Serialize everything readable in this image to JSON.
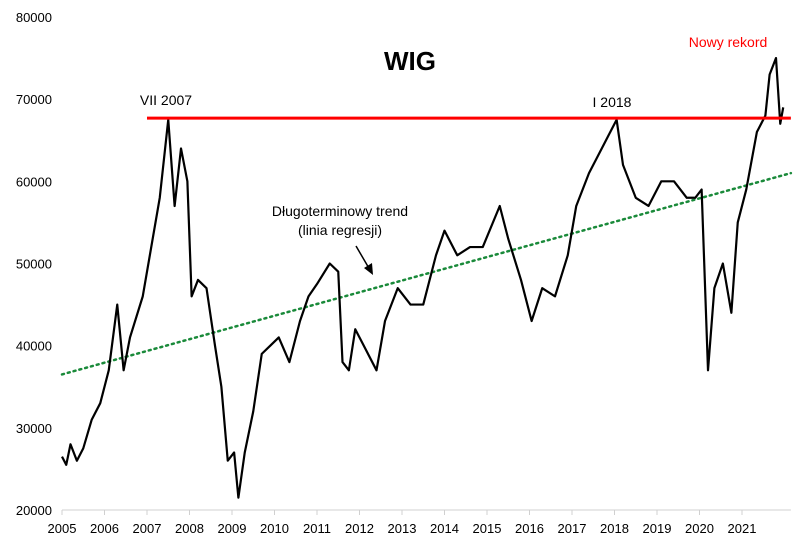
{
  "chart_data": {
    "type": "line",
    "title": "WIG",
    "xlabel": "",
    "ylabel": "",
    "xlim": [
      2005,
      2022.15
    ],
    "ylim": [
      20000,
      80000
    ],
    "grid": false,
    "x_ticks": [
      "2005",
      "2006",
      "2007",
      "2008",
      "2009",
      "2010",
      "2011",
      "2012",
      "2013",
      "2014",
      "2015",
      "2016",
      "2017",
      "2018",
      "2019",
      "2020",
      "2021"
    ],
    "y_ticks": [
      "20000",
      "30000",
      "40000",
      "50000",
      "60000",
      "70000",
      "80000"
    ],
    "series": [
      {
        "color": "#000000",
        "x": [
          2005.0,
          2005.1,
          2005.2,
          2005.35,
          2005.5,
          2005.7,
          2005.9,
          2006.1,
          2006.3,
          2006.45,
          2006.6,
          2006.9,
          2007.1,
          2007.3,
          2007.5,
          2007.65,
          2007.8,
          2007.95,
          2008.05,
          2008.2,
          2008.4,
          2008.6,
          2008.75,
          2008.9,
          2009.05,
          2009.15,
          2009.3,
          2009.5,
          2009.7,
          2009.9,
          2010.1,
          2010.35,
          2010.6,
          2010.8,
          2011.0,
          2011.3,
          2011.5,
          2011.6,
          2011.75,
          2011.9,
          2012.1,
          2012.4,
          2012.6,
          2012.9,
          2013.2,
          2013.5,
          2013.8,
          2014.0,
          2014.3,
          2014.6,
          2014.9,
          2015.3,
          2015.5,
          2015.8,
          2016.05,
          2016.3,
          2016.6,
          2016.9,
          2017.1,
          2017.4,
          2017.7,
          2018.05,
          2018.2,
          2018.5,
          2018.8,
          2019.1,
          2019.4,
          2019.7,
          2019.9,
          2020.05,
          2020.2,
          2020.35,
          2020.55,
          2020.75,
          2020.9,
          2021.1,
          2021.35,
          2021.55,
          2021.65,
          2021.8,
          2021.9,
          2021.97
        ],
        "y": [
          26500,
          25500,
          28000,
          26000,
          27500,
          31000,
          33000,
          37000,
          45000,
          37000,
          41000,
          46000,
          52000,
          58000,
          67500,
          57000,
          64000,
          60000,
          46000,
          48000,
          47000,
          40000,
          35000,
          26000,
          27000,
          21500,
          27000,
          32000,
          39000,
          40000,
          41000,
          38000,
          43000,
          46000,
          47500,
          50000,
          49000,
          38000,
          37000,
          42000,
          40000,
          37000,
          43000,
          47000,
          45000,
          45000,
          51000,
          54000,
          51000,
          52000,
          52000,
          57000,
          53000,
          48000,
          43000,
          47000,
          46000,
          51000,
          57000,
          61000,
          64000,
          67500,
          62000,
          58000,
          57000,
          60000,
          60000,
          58000,
          58000,
          59000,
          37000,
          47000,
          50000,
          44000,
          55000,
          59000,
          66000,
          68000,
          73000,
          75000,
          67000,
          69000
        ]
      }
    ],
    "trend_line": {
      "color": "#1a8a3a",
      "style": "dotted",
      "x": [
        2005,
        2022.15
      ],
      "y": [
        36500,
        61000
      ]
    },
    "record_line": {
      "color": "#ff0000",
      "x": [
        2007.0,
        2022.15
      ],
      "y": 67700
    },
    "annotations": {
      "peak_2007": "VII 2007",
      "peak_2018": "I 2018",
      "new_record": "Nowy rekord",
      "trend_line1": "Długoterminowy trend",
      "trend_line2": "(linia regresji)"
    }
  }
}
